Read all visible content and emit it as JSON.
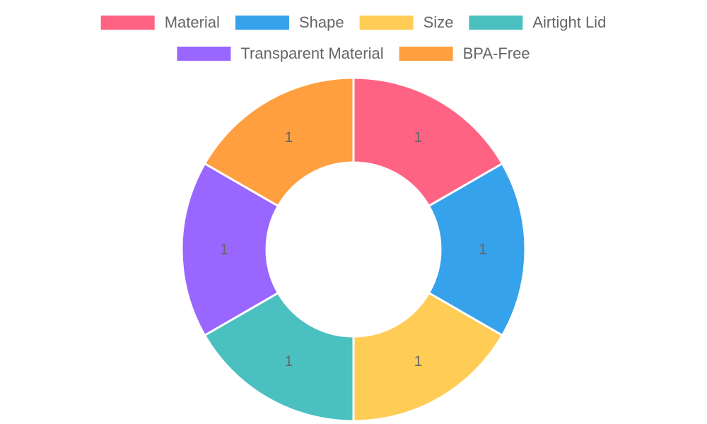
{
  "chart_data": {
    "type": "doughnut",
    "categories": [
      "Material",
      "Shape",
      "Size",
      "Airtight Lid",
      "Transparent Material",
      "BPA-Free"
    ],
    "values": [
      1,
      1,
      1,
      1,
      1,
      1
    ],
    "colors": [
      "#ff6384",
      "#36a2eb",
      "#ffcd56",
      "#4bc0c0",
      "#9966ff",
      "#ff9f40"
    ],
    "legend": "top"
  }
}
